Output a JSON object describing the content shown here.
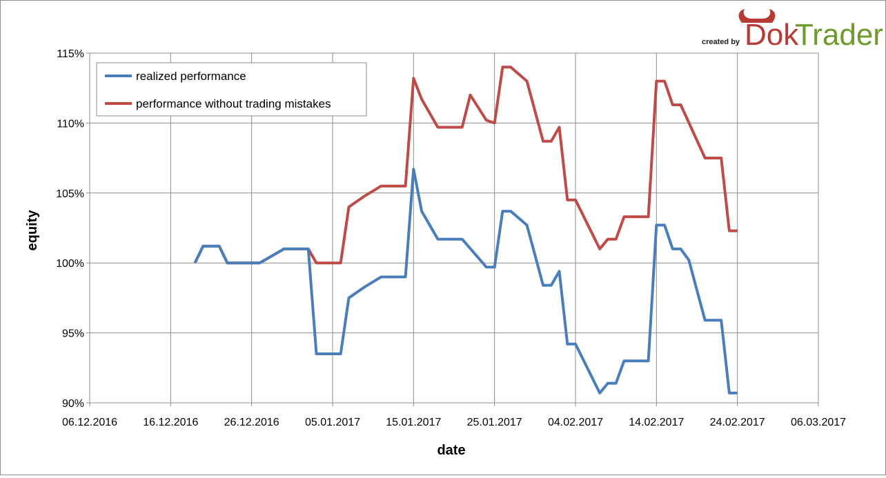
{
  "logo": {
    "prefix": "created by",
    "part1": "Dok",
    "part2": "Trader"
  },
  "chart_data": {
    "type": "line",
    "xlabel": "date",
    "ylabel": "equity",
    "x_ticks": [
      "06.12.2016",
      "16.12.2016",
      "26.12.2016",
      "05.01.2017",
      "15.01.2017",
      "25.01.2017",
      "04.02.2017",
      "14.02.2017",
      "24.02.2017",
      "06.03.2017"
    ],
    "x_tick_values": [
      0,
      10,
      20,
      30,
      40,
      50,
      60,
      70,
      80,
      90
    ],
    "xlim": [
      0,
      90
    ],
    "y_ticks": [
      "90%",
      "95%",
      "100%",
      "105%",
      "110%",
      "115%"
    ],
    "y_tick_values": [
      90,
      95,
      100,
      105,
      110,
      115
    ],
    "ylim": [
      90,
      115
    ],
    "grid": true,
    "legend_position": "top-left",
    "series": [
      {
        "name": "realized performance",
        "color": "#4a7ebb",
        "x": [
          13,
          14,
          16,
          17,
          20,
          21,
          24,
          27,
          28,
          31,
          32,
          34,
          36,
          37,
          39,
          40,
          41,
          43,
          46,
          49,
          50,
          51,
          52,
          54,
          56,
          57,
          58,
          59,
          60,
          63,
          64,
          65,
          66,
          69,
          70,
          71,
          72,
          73,
          74,
          76,
          77,
          78,
          79,
          80
        ],
        "values": [
          100,
          101.2,
          101.2,
          100,
          100,
          100,
          101,
          101,
          93.5,
          93.5,
          97.5,
          98.3,
          99,
          99,
          99,
          106.7,
          103.7,
          101.7,
          101.7,
          99.7,
          99.7,
          103.7,
          103.7,
          102.7,
          98.4,
          98.4,
          99.4,
          94.2,
          94.2,
          90.7,
          91.4,
          91.4,
          93,
          93,
          102.7,
          102.7,
          101,
          101,
          100.2,
          95.9,
          95.9,
          95.9,
          90.7,
          90.7
        ]
      },
      {
        "name": "performance without trading mistakes",
        "color": "#be4b48",
        "x": [
          13,
          14,
          16,
          17,
          20,
          21,
          24,
          27,
          28,
          31,
          32,
          34,
          36,
          37,
          39,
          40,
          41,
          43,
          46,
          47,
          49,
          50,
          51,
          52,
          54,
          56,
          57,
          58,
          59,
          60,
          63,
          64,
          65,
          66,
          69,
          70,
          71,
          72,
          73,
          76,
          77,
          78,
          79,
          80
        ],
        "values": [
          100,
          101.2,
          101.2,
          100,
          100,
          100,
          101,
          101,
          100,
          100,
          104,
          104.8,
          105.5,
          105.5,
          105.5,
          113.2,
          111.7,
          109.7,
          109.7,
          112,
          110.2,
          110,
          114,
          114,
          113,
          108.7,
          108.7,
          109.7,
          104.5,
          104.5,
          101,
          101.7,
          101.7,
          103.3,
          103.3,
          113,
          113,
          111.3,
          111.3,
          107.5,
          107.5,
          107.5,
          102.3,
          102.3
        ]
      }
    ]
  }
}
